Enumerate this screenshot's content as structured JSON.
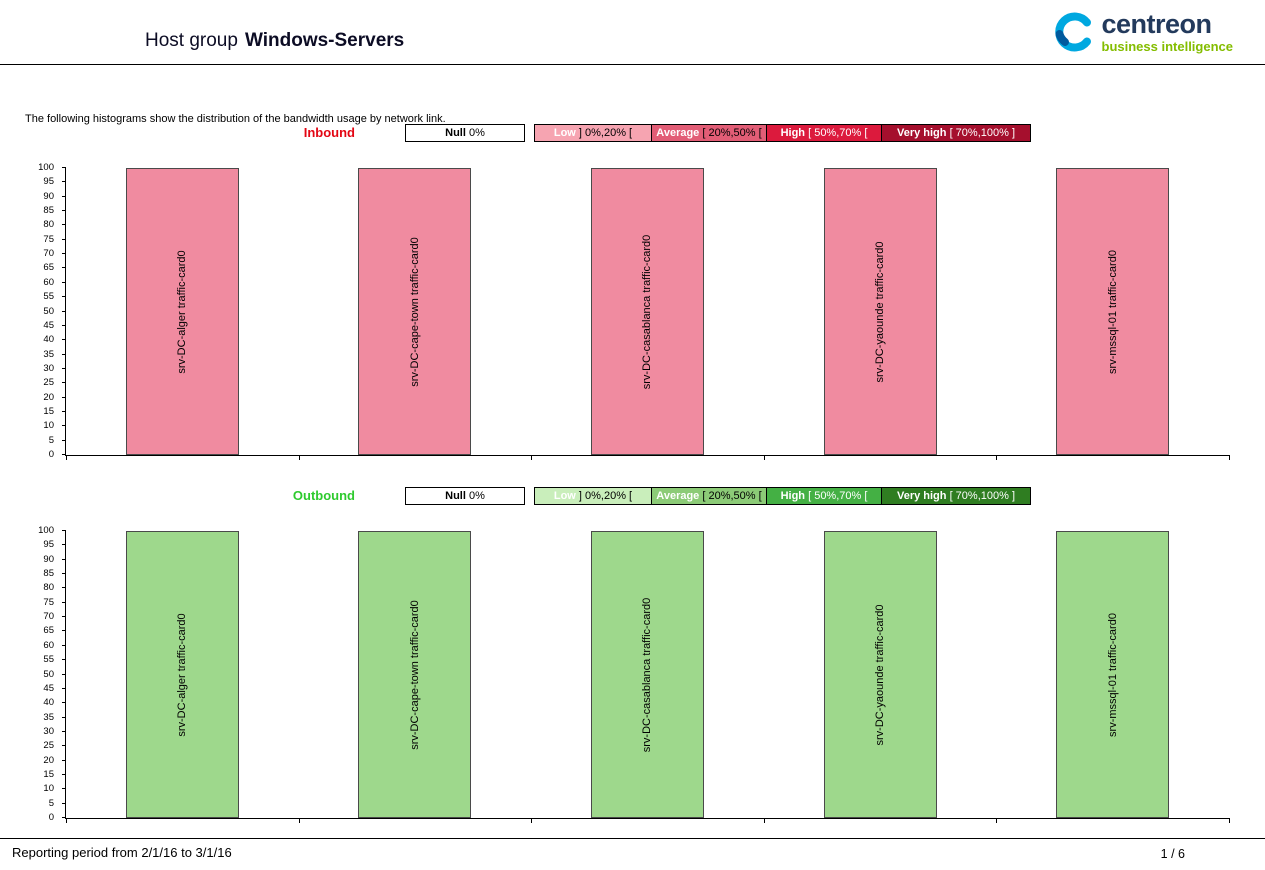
{
  "header": {
    "title_prefix": "Host group",
    "title_bold": "Windows-Servers",
    "logo": {
      "brand": "centreon",
      "tagline": "business intelligence",
      "brand_color": "#233a5c",
      "tagline_color": "#84bd00",
      "icon": "centreon-c-swirl-icon",
      "icon_color": "#00a8e0"
    }
  },
  "intro": "The following histograms show the distribution of the bandwidth usage by network link.",
  "chart_data": [
    {
      "type": "bar",
      "title": "Inbound",
      "title_color": "#e30613",
      "categories": [
        "srv-DC-alger traffic-card0",
        "srv-DC-cape-town traffic-card0",
        "srv-DC-casablanca traffic-card0",
        "srv-DC-yaounde traffic-card0",
        "srv-mssql-01 traffic-card0"
      ],
      "values": [
        100,
        100,
        100,
        100,
        100
      ],
      "xlabel": "",
      "ylabel": "",
      "ylim": [
        0,
        100
      ],
      "ytick_step": 5,
      "grid": false,
      "legend_position": "top",
      "bar_color": "#f08ba0",
      "bar_border": "#4a4a4a",
      "legend": [
        {
          "name": "Null",
          "range": "0%",
          "bg": "#ffffff",
          "name_color": "#000000",
          "range_color": "#000000"
        },
        {
          "name": "Low",
          "range": "] 0%,20% [",
          "bg": "#f6a4b1",
          "name_color": "#ffffff",
          "range_color": "#000000"
        },
        {
          "name": "Average",
          "range": "[ 20%,50% [",
          "bg": "#e25d76",
          "name_color": "#ffffff",
          "range_color": "#000000"
        },
        {
          "name": "High",
          "range": "[ 50%,70% [",
          "bg": "#dc1a3d",
          "name_color": "#ffffff",
          "range_color": "#ffffff"
        },
        {
          "name": "Very high",
          "range": "[ 70%,100% ]",
          "bg": "#a50f2d",
          "name_color": "#ffffff",
          "range_color": "#ffffff"
        }
      ]
    },
    {
      "type": "bar",
      "title": "Outbound",
      "title_color": "#2eca2e",
      "categories": [
        "srv-DC-alger traffic-card0",
        "srv-DC-cape-town traffic-card0",
        "srv-DC-casablanca traffic-card0",
        "srv-DC-yaounde traffic-card0",
        "srv-mssql-01 traffic-card0"
      ],
      "values": [
        100,
        100,
        100,
        100,
        100
      ],
      "xlabel": "",
      "ylabel": "",
      "ylim": [
        0,
        100
      ],
      "ytick_step": 5,
      "grid": false,
      "legend_position": "top",
      "bar_color": "#9ed88c",
      "bar_border": "#4a4a4a",
      "legend": [
        {
          "name": "Null",
          "range": "0%",
          "bg": "#ffffff",
          "name_color": "#000000",
          "range_color": "#000000"
        },
        {
          "name": "Low",
          "range": "] 0%,20% [",
          "bg": "#c9eebb",
          "name_color": "#ffffff",
          "range_color": "#000000"
        },
        {
          "name": "Average",
          "range": "[ 20%,50% [",
          "bg": "#8ccb77",
          "name_color": "#ffffff",
          "range_color": "#000000"
        },
        {
          "name": "High",
          "range": "[ 50%,70% [",
          "bg": "#44b044",
          "name_color": "#ffffff",
          "range_color": "#ffffff"
        },
        {
          "name": "Very high",
          "range": "[ 70%,100% ]",
          "bg": "#2f7d21",
          "name_color": "#ffffff",
          "range_color": "#ffffff"
        }
      ]
    }
  ],
  "footer": {
    "reporting_period": "Reporting period from 2/1/16 to 3/1/16",
    "page": "1 / 6"
  }
}
